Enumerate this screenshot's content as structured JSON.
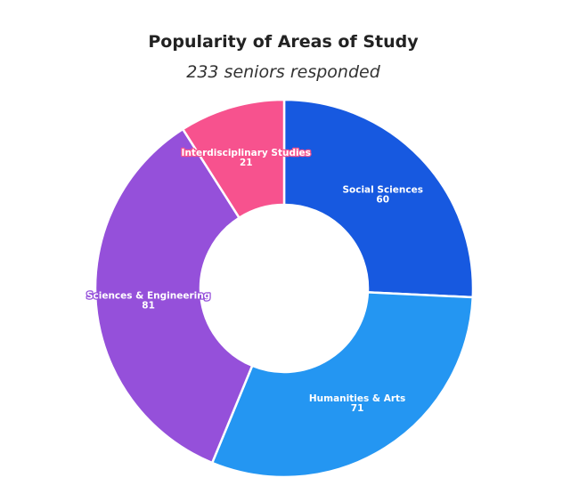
{
  "chart_data": {
    "type": "pie",
    "style": "donut",
    "title": "Popularity of Areas of Study",
    "subtitle": "233 seniors responded",
    "categories": [
      "Social Sciences",
      "Humanities & Arts",
      "Sciences & Engineering",
      "Interdisciplinary Studies"
    ],
    "values": [
      60,
      71,
      81,
      21
    ],
    "colors": [
      "#1759E0",
      "#2496F2",
      "#9550DA",
      "#F7528E"
    ],
    "legend": "none"
  }
}
